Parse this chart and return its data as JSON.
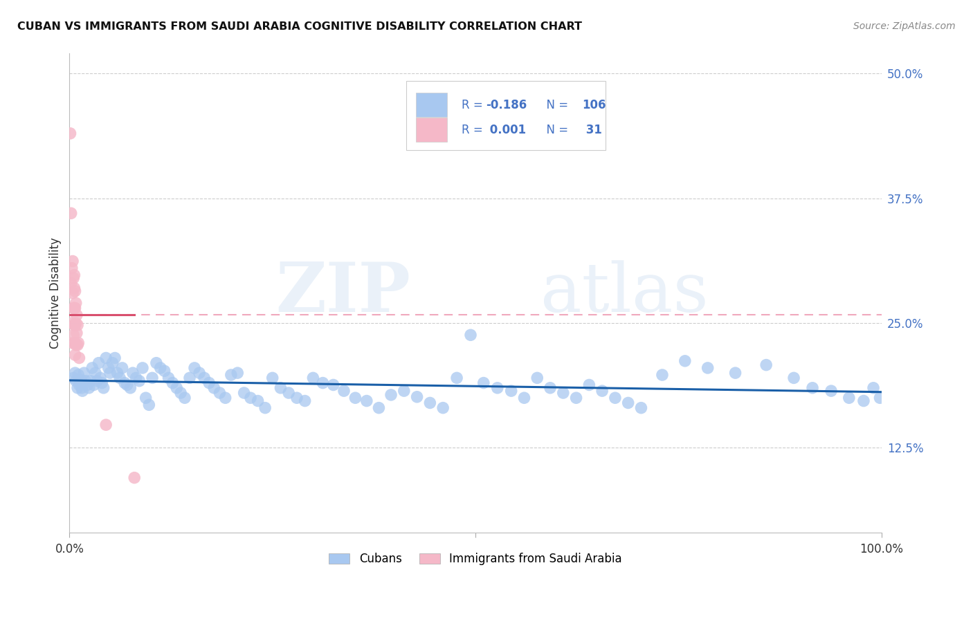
{
  "title": "CUBAN VS IMMIGRANTS FROM SAUDI ARABIA COGNITIVE DISABILITY CORRELATION CHART",
  "source": "Source: ZipAtlas.com",
  "ylabel": "Cognitive Disability",
  "legend_r_blue": "-0.186",
  "legend_n_blue": "106",
  "legend_r_pink": "0.001",
  "legend_n_pink": "31",
  "blue_color": "#a8c8f0",
  "pink_color": "#f5b8c8",
  "blue_line_color": "#1a5fa8",
  "pink_line_color": "#d94f6e",
  "pink_dashed_color": "#f0a8bc",
  "watermark_zip": "ZIP",
  "watermark_atlas": "atlas",
  "cubans_x": [
    0.005,
    0.007,
    0.008,
    0.01,
    0.011,
    0.012,
    0.014,
    0.015,
    0.016,
    0.018,
    0.02,
    0.022,
    0.024,
    0.026,
    0.028,
    0.03,
    0.032,
    0.034,
    0.036,
    0.038,
    0.04,
    0.042,
    0.045,
    0.048,
    0.05,
    0.053,
    0.056,
    0.059,
    0.062,
    0.065,
    0.068,
    0.071,
    0.075,
    0.078,
    0.082,
    0.086,
    0.09,
    0.094,
    0.098,
    0.102,
    0.107,
    0.112,
    0.117,
    0.122,
    0.127,
    0.132,
    0.137,
    0.142,
    0.148,
    0.154,
    0.16,
    0.166,
    0.172,
    0.178,
    0.185,
    0.192,
    0.199,
    0.207,
    0.215,
    0.223,
    0.232,
    0.241,
    0.25,
    0.26,
    0.27,
    0.28,
    0.29,
    0.3,
    0.312,
    0.325,
    0.338,
    0.352,
    0.366,
    0.381,
    0.396,
    0.412,
    0.428,
    0.444,
    0.46,
    0.477,
    0.494,
    0.51,
    0.527,
    0.544,
    0.56,
    0.576,
    0.592,
    0.608,
    0.624,
    0.64,
    0.656,
    0.672,
    0.688,
    0.704,
    0.73,
    0.758,
    0.786,
    0.82,
    0.858,
    0.892,
    0.915,
    0.938,
    0.96,
    0.978,
    0.99,
    0.998
  ],
  "cubans_y": [
    0.195,
    0.2,
    0.192,
    0.185,
    0.198,
    0.188,
    0.193,
    0.185,
    0.182,
    0.2,
    0.192,
    0.188,
    0.185,
    0.192,
    0.205,
    0.188,
    0.2,
    0.192,
    0.21,
    0.195,
    0.19,
    0.185,
    0.215,
    0.205,
    0.2,
    0.21,
    0.215,
    0.2,
    0.195,
    0.205,
    0.19,
    0.188,
    0.185,
    0.2,
    0.195,
    0.192,
    0.205,
    0.175,
    0.168,
    0.195,
    0.21,
    0.205,
    0.202,
    0.195,
    0.19,
    0.185,
    0.18,
    0.175,
    0.195,
    0.205,
    0.2,
    0.195,
    0.19,
    0.185,
    0.18,
    0.175,
    0.198,
    0.2,
    0.18,
    0.175,
    0.172,
    0.165,
    0.195,
    0.185,
    0.18,
    0.175,
    0.172,
    0.195,
    0.19,
    0.188,
    0.182,
    0.175,
    0.172,
    0.165,
    0.178,
    0.182,
    0.176,
    0.17,
    0.165,
    0.195,
    0.238,
    0.19,
    0.185,
    0.182,
    0.175,
    0.195,
    0.185,
    0.18,
    0.175,
    0.188,
    0.182,
    0.175,
    0.17,
    0.165,
    0.198,
    0.212,
    0.205,
    0.2,
    0.208,
    0.195,
    0.185,
    0.182,
    0.175,
    0.172,
    0.185,
    0.175
  ],
  "saudi_x": [
    0.001,
    0.002,
    0.002,
    0.003,
    0.003,
    0.004,
    0.004,
    0.004,
    0.005,
    0.005,
    0.005,
    0.006,
    0.006,
    0.006,
    0.006,
    0.007,
    0.007,
    0.007,
    0.007,
    0.007,
    0.008,
    0.008,
    0.008,
    0.009,
    0.009,
    0.01,
    0.01,
    0.011,
    0.012,
    0.045,
    0.08
  ],
  "saudi_y": [
    0.44,
    0.36,
    0.29,
    0.305,
    0.25,
    0.312,
    0.28,
    0.23,
    0.295,
    0.265,
    0.238,
    0.298,
    0.285,
    0.265,
    0.248,
    0.282,
    0.265,
    0.248,
    0.23,
    0.218,
    0.27,
    0.25,
    0.228,
    0.258,
    0.24,
    0.248,
    0.228,
    0.23,
    0.215,
    0.148,
    0.095
  ],
  "xlim": [
    0.0,
    1.0
  ],
  "ylim": [
    0.04,
    0.52
  ],
  "ytick_positions": [
    0.125,
    0.25,
    0.375,
    0.5
  ],
  "ytick_labels_right": [
    "12.5%",
    "25.0%",
    "37.5%",
    "50.0%"
  ],
  "xtick_positions": [
    0.0,
    0.5,
    1.0
  ],
  "xtick_labels": [
    "0.0%",
    "",
    "100.0%"
  ]
}
